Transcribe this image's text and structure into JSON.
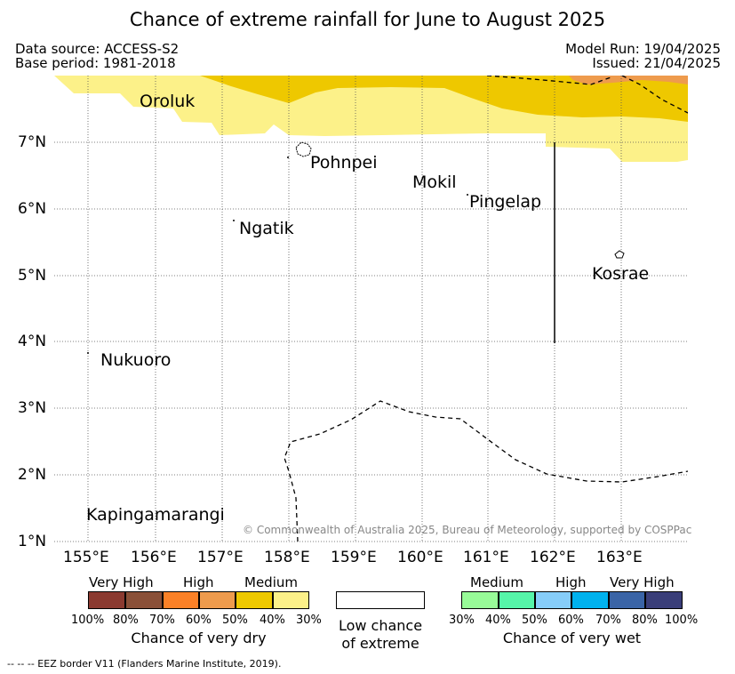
{
  "title": "Chance of extreme rainfall for June to August 2025",
  "meta": {
    "data_source": "Data source: ACCESS-S2",
    "base_period": "Base period: 1981-2018",
    "model_run": "Model Run: 19/04/2025",
    "issued": "Issued: 21/04/2025"
  },
  "map": {
    "lat_labels": [
      "7°N",
      "6°N",
      "5°N",
      "4°N",
      "3°N",
      "2°N",
      "1°N"
    ],
    "lon_labels": [
      "155°E",
      "156°E",
      "157°E",
      "158°E",
      "159°E",
      "160°E",
      "161°E",
      "162°E",
      "163°E"
    ],
    "places": {
      "oroluk": "Oroluk",
      "pohnpei": "Pohnpei",
      "mokil": "Mokil",
      "pingelap": "Pingelap",
      "ngatik": "Ngatik",
      "kosrae": "Kosrae",
      "nukuoro": "Nukuoro",
      "kapingamarangi": "Kapingamarangi"
    },
    "copyright": "© Commonwealth of Australia 2025, Bureau of Meteorology, supported by COSPPac"
  },
  "legend": {
    "dry": {
      "categories": [
        "Very High",
        "High",
        "Medium"
      ],
      "percent_labels": [
        "100%",
        "80%",
        "70%",
        "60%",
        "50%",
        "40%",
        "30%"
      ],
      "colors": [
        "#8b3a30",
        "#8a5038",
        "#fb8127",
        "#ee9b4d",
        "#eec800",
        "#fcf189"
      ],
      "caption": "Chance of very dry"
    },
    "low": {
      "caption_line1": "Low chance",
      "caption_line2": "of extreme"
    },
    "wet": {
      "categories": [
        "Medium",
        "High",
        "Very High"
      ],
      "percent_labels": [
        "30%",
        "40%",
        "50%",
        "60%",
        "70%",
        "80%",
        "100%"
      ],
      "colors": [
        "#98fb98",
        "#56f5a9",
        "#86cdf9",
        "#00b2ee",
        "#3a64a6",
        "#3a3e79"
      ],
      "caption": "Chance of very wet"
    }
  },
  "footnote": "-- -- -- EEZ border V11 (Flanders Marine Institute, 2019)."
}
